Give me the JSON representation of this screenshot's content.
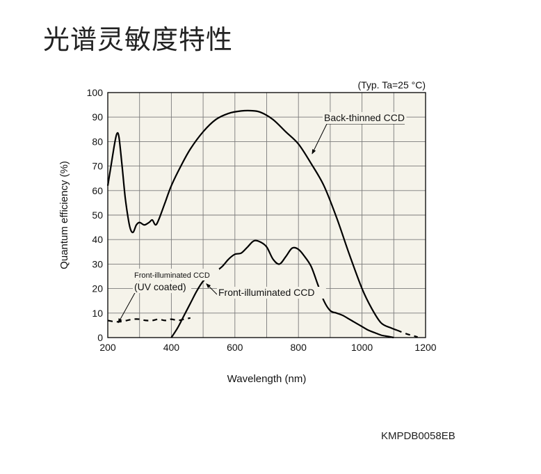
{
  "page": {
    "title": "光谱灵敏度特性",
    "doc_code": "KMPDB0058EB"
  },
  "colors": {
    "plot_background": "#f5f3ea",
    "grid": "#7a7a7a",
    "curve": "#000000"
  },
  "chart_data": {
    "type": "line",
    "title": "",
    "note": "(Typ. Ta=25 °C)",
    "xlabel": "Wavelength (nm)",
    "ylabel": "Quantum efficiency (%)",
    "xlim": [
      200,
      1200
    ],
    "ylim": [
      0,
      100
    ],
    "x_ticks": [
      200,
      400,
      600,
      800,
      1000,
      1200
    ],
    "y_ticks": [
      0,
      10,
      20,
      30,
      40,
      50,
      60,
      70,
      80,
      90,
      100
    ],
    "grid": true,
    "series": [
      {
        "name": "Back-thinned CCD",
        "style": "solid",
        "points": [
          [
            200,
            62
          ],
          [
            210,
            70
          ],
          [
            220,
            78
          ],
          [
            228,
            83
          ],
          [
            235,
            82
          ],
          [
            245,
            70
          ],
          [
            255,
            57
          ],
          [
            265,
            48
          ],
          [
            272,
            44
          ],
          [
            280,
            43
          ],
          [
            290,
            46
          ],
          [
            300,
            47
          ],
          [
            315,
            46
          ],
          [
            330,
            47
          ],
          [
            340,
            48
          ],
          [
            350,
            46
          ],
          [
            360,
            48
          ],
          [
            380,
            55
          ],
          [
            400,
            62
          ],
          [
            430,
            70
          ],
          [
            460,
            77
          ],
          [
            500,
            84
          ],
          [
            540,
            89
          ],
          [
            580,
            91.5
          ],
          [
            620,
            92.5
          ],
          [
            650,
            92.6
          ],
          [
            680,
            92
          ],
          [
            720,
            89
          ],
          [
            760,
            84
          ],
          [
            800,
            79
          ],
          [
            840,
            71
          ],
          [
            880,
            62
          ],
          [
            920,
            49
          ],
          [
            960,
            34
          ],
          [
            1000,
            20
          ],
          [
            1030,
            12
          ],
          [
            1060,
            6
          ],
          [
            1090,
            4
          ],
          [
            1110,
            3
          ]
        ]
      },
      {
        "name": "",
        "style": "dashed",
        "points": [
          [
            1110,
            3
          ],
          [
            1140,
            1.5
          ],
          [
            1160,
            0.8
          ],
          [
            1175,
            0.2
          ]
        ]
      },
      {
        "name": "Front-illuminated CCD",
        "style": "solid",
        "points": [
          [
            400,
            0
          ],
          [
            420,
            4
          ],
          [
            440,
            9
          ],
          [
            460,
            14
          ],
          [
            480,
            19
          ],
          [
            500,
            23
          ],
          [
            520,
            25
          ],
          [
            540,
            27
          ],
          [
            560,
            29
          ],
          [
            580,
            32
          ],
          [
            600,
            34
          ],
          [
            620,
            34.5
          ],
          [
            640,
            37
          ],
          [
            660,
            39.5
          ],
          [
            680,
            39
          ],
          [
            700,
            37
          ],
          [
            720,
            32
          ],
          [
            740,
            30
          ],
          [
            760,
            33
          ],
          [
            780,
            36.5
          ],
          [
            800,
            36
          ],
          [
            820,
            33
          ],
          [
            840,
            29
          ],
          [
            860,
            22
          ],
          [
            880,
            15
          ],
          [
            900,
            11
          ],
          [
            920,
            10
          ],
          [
            940,
            9
          ],
          [
            960,
            7.5
          ],
          [
            980,
            6
          ],
          [
            1000,
            4.5
          ],
          [
            1020,
            3
          ],
          [
            1040,
            2
          ],
          [
            1060,
            1
          ],
          [
            1080,
            0.5
          ],
          [
            1100,
            0
          ]
        ]
      },
      {
        "name": "Front-illuminated CCD (UV coated)",
        "style": "dashed",
        "points": [
          [
            200,
            7
          ],
          [
            220,
            6.5
          ],
          [
            240,
            6.5
          ],
          [
            260,
            7
          ],
          [
            280,
            7.5
          ],
          [
            300,
            7.5
          ],
          [
            320,
            7
          ],
          [
            340,
            7
          ],
          [
            360,
            7.5
          ],
          [
            380,
            7
          ],
          [
            400,
            7.5
          ],
          [
            420,
            7
          ],
          [
            440,
            7.5
          ],
          [
            460,
            8
          ]
        ]
      }
    ],
    "annotations": [
      {
        "text": "Back-thinned CCD",
        "lines": [
          "Back-thinned CCD"
        ],
        "at": [
          872,
          89
        ],
        "arrow_to": [
          843,
          75
        ]
      },
      {
        "text": "Front-illuminated CCD",
        "lines": [
          "Front-illuminated CCD"
        ],
        "at": [
          530,
          17
        ],
        "arrow_to": [
          510,
          22
        ]
      },
      {
        "text": "Front-illuminated CCD (UV coated)",
        "lines": [
          "Front-illuminated CCD",
          "(UV coated)"
        ],
        "at": [
          280,
          22
        ],
        "arrow_to": [
          233,
          6
        ]
      }
    ]
  }
}
